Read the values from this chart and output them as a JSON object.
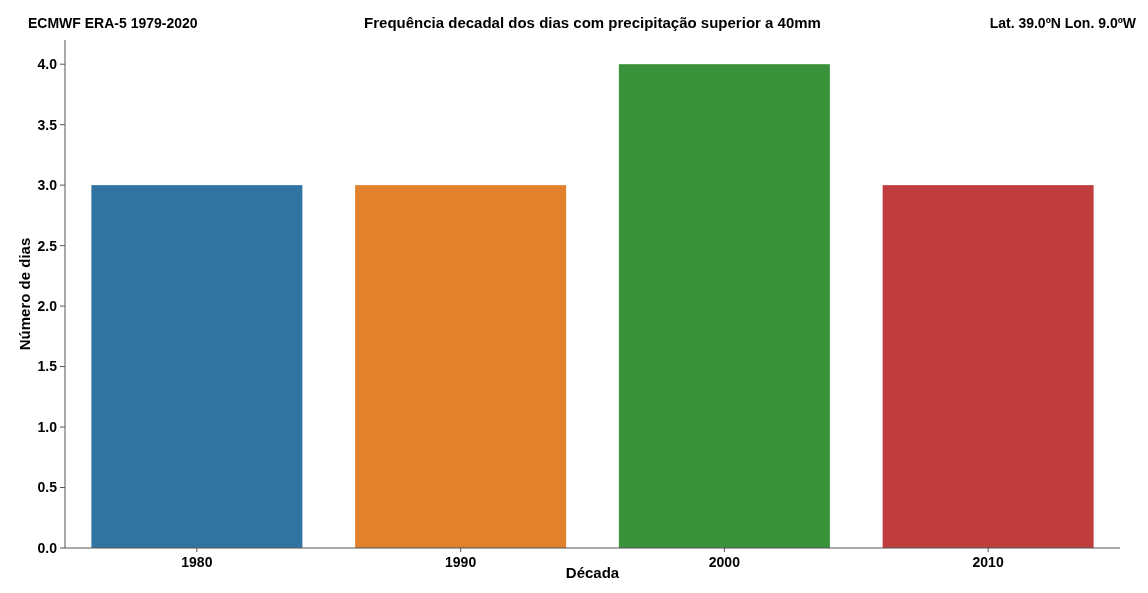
{
  "chart_data": {
    "type": "bar",
    "title": "Frequência decadal dos dias com precipitação superior a 40mm",
    "annotations": [
      "ECMWF ERA-5 1979-2020",
      "Lat. 39.0ºN Lon. 9.0ºW"
    ],
    "xlabel": "Década",
    "ylabel": "Número de dias",
    "categories": [
      "1980",
      "1990",
      "2000",
      "2010"
    ],
    "values": [
      3,
      3,
      4,
      3
    ],
    "colors": [
      "#3274a1",
      "#e1812c",
      "#3a923a",
      "#c03d3e"
    ],
    "ylim": [
      0,
      4.2
    ],
    "yticks": [
      {
        "value": 0,
        "label": "0.0"
      },
      {
        "value": 0.5,
        "label": "0.5"
      },
      {
        "value": 1,
        "label": "1.0"
      },
      {
        "value": 1.5,
        "label": "1.5"
      },
      {
        "value": 2,
        "label": "2.0"
      },
      {
        "value": 2.5,
        "label": "2.5"
      },
      {
        "value": 3,
        "label": "3.0"
      },
      {
        "value": 3.5,
        "label": "3.5"
      },
      {
        "value": 4,
        "label": "4.0"
      }
    ]
  }
}
